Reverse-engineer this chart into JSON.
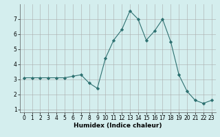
{
  "x": [
    0,
    1,
    2,
    3,
    4,
    5,
    6,
    7,
    8,
    9,
    10,
    11,
    12,
    13,
    14,
    15,
    16,
    17,
    18,
    19,
    20,
    21,
    22,
    23
  ],
  "y": [
    3.1,
    3.1,
    3.1,
    3.1,
    3.1,
    3.1,
    3.2,
    3.3,
    2.75,
    2.4,
    4.4,
    5.6,
    6.3,
    7.55,
    7.0,
    5.6,
    6.2,
    7.0,
    5.5,
    3.3,
    2.2,
    1.6,
    1.4,
    1.6
  ],
  "line_color": "#2d7070",
  "marker": "D",
  "marker_size": 2.2,
  "xlabel": "Humidex (Indice chaleur)",
  "xlabel_fontsize": 6.5,
  "xlabel_weight": "bold",
  "ylim": [
    0.8,
    8.0
  ],
  "xlim": [
    -0.5,
    23.5
  ],
  "yticks": [
    1,
    2,
    3,
    4,
    5,
    6,
    7
  ],
  "xticks": [
    0,
    1,
    2,
    3,
    4,
    5,
    6,
    7,
    8,
    9,
    10,
    11,
    12,
    13,
    14,
    15,
    16,
    17,
    18,
    19,
    20,
    21,
    22,
    23
  ],
  "xtick_labels": [
    "0",
    "1",
    "2",
    "3",
    "4",
    "5",
    "6",
    "7",
    "8",
    "9",
    "10",
    "11",
    "12",
    "13",
    "14",
    "15",
    "16",
    "17",
    "18",
    "19",
    "20",
    "21",
    "22",
    "23"
  ],
  "tick_fontsize": 5.5,
  "background_color": "#d4eeee",
  "grid_color": "#aaaaaa",
  "figure_bg": "#d4eeee"
}
